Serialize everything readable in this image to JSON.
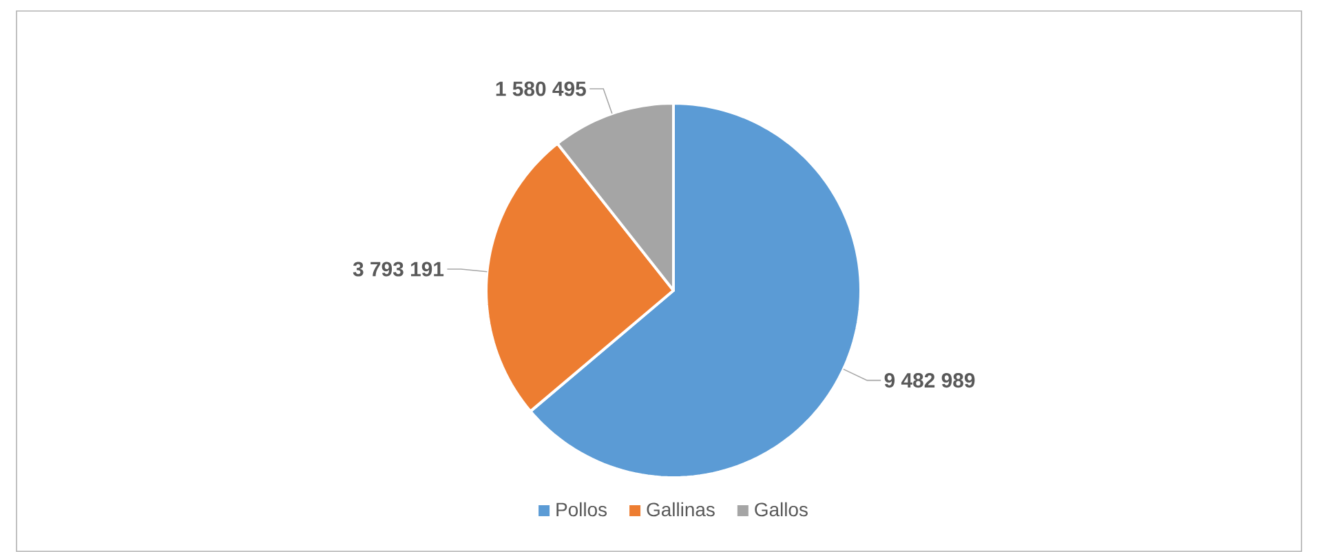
{
  "chart_data": {
    "type": "pie",
    "categories": [
      "Pollos",
      "Gallinas",
      "Gallos"
    ],
    "values": [
      9482989,
      3793191,
      1580495
    ],
    "colors": [
      "#5b9bd5",
      "#ed7d31",
      "#a5a5a5"
    ],
    "value_labels": [
      "9 482 989",
      "3 793 191",
      "1 580 495"
    ],
    "legend": "bottom"
  }
}
